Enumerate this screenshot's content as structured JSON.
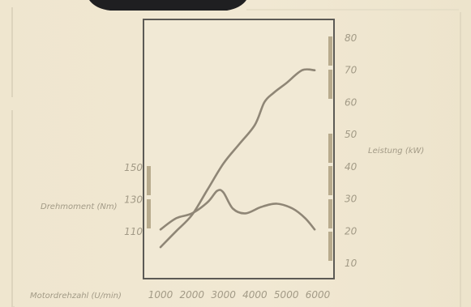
{
  "colors": {
    "background": "#efe6d0",
    "frame": "#5c5a55",
    "curve": "#8f8676",
    "text": "#a29a86",
    "scale_bar": "#b8ab8d"
  },
  "chart_data": {
    "type": "line",
    "xlabel": "Motordrehzahl (U/min)",
    "x_ticks": [
      "1000",
      "2000",
      "3000",
      "4000",
      "5000",
      "6000"
    ],
    "xlim": [
      1000,
      6000
    ],
    "y_left": {
      "label": "Drehmoment (Nm)",
      "ticks": [
        "150",
        "130",
        "110"
      ],
      "range": [
        110,
        150
      ]
    },
    "y_right": {
      "label": "Leistung (kW)",
      "ticks": [
        "80",
        "70",
        "60",
        "50",
        "40",
        "30",
        "20",
        "10"
      ],
      "range": [
        10,
        80
      ]
    },
    "series": [
      {
        "axis": "right",
        "x": [
          1000,
          1500,
          2000,
          2500,
          3000,
          3500,
          4000,
          4300,
          4600,
          5000,
          5500,
          5900
        ],
        "values": [
          15,
          20,
          25,
          33,
          41,
          47,
          53,
          60,
          63,
          66,
          70,
          70
        ]
      },
      {
        "axis": "right",
        "x": [
          1000,
          1500,
          2000,
          2500,
          2800,
          3000,
          3300,
          3700,
          4200,
          4700,
          5200,
          5600,
          5900
        ],
        "values": [
          20.5,
          24,
          25.5,
          29,
          32.5,
          32,
          27,
          25.5,
          27.5,
          28.5,
          27,
          24,
          20.5
        ]
      }
    ]
  }
}
